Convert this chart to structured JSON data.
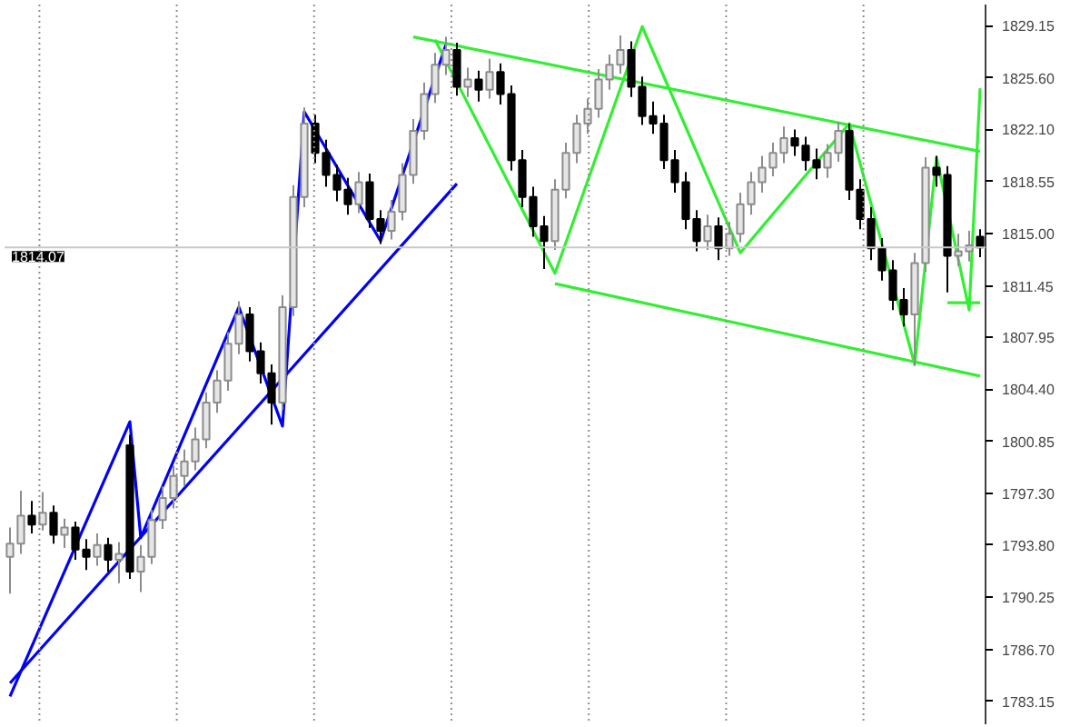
{
  "chart_data": {
    "type": "candlestick",
    "categories": [
      null,
      null,
      null,
      null,
      null,
      null,
      null,
      null,
      null,
      null,
      null,
      null,
      null,
      null,
      null,
      null,
      null,
      null,
      null,
      null,
      null,
      null,
      null,
      null,
      null,
      null,
      null,
      null,
      null,
      null,
      null,
      null,
      null,
      null,
      null,
      null,
      null,
      null,
      null,
      null,
      null,
      null,
      null,
      null,
      null,
      null,
      null,
      null,
      null,
      null,
      null,
      null,
      null,
      null,
      null,
      null,
      null,
      null,
      null,
      null,
      null,
      null,
      null,
      null,
      null,
      null,
      null,
      null,
      null,
      null,
      null,
      null,
      null,
      null,
      null,
      null,
      null,
      null,
      null,
      null,
      null,
      null,
      null,
      null,
      null,
      null,
      null,
      null,
      null,
      null
    ],
    "ohlc": [
      [
        1793.0,
        1795.0,
        1790.5,
        1793.9
      ],
      [
        1793.9,
        1797.5,
        1793.2,
        1795.8
      ],
      [
        1795.8,
        1796.8,
        1794.6,
        1795.2
      ],
      [
        1795.2,
        1797.4,
        1794.8,
        1796.0
      ],
      [
        1796.0,
        1796.5,
        1793.9,
        1794.5
      ],
      [
        1794.5,
        1795.6,
        1793.6,
        1795.0
      ],
      [
        1795.0,
        1795.4,
        1792.8,
        1793.5
      ],
      [
        1793.5,
        1794.2,
        1792.1,
        1793.0
      ],
      [
        1793.0,
        1794.6,
        1792.4,
        1793.8
      ],
      [
        1793.8,
        1794.3,
        1792.0,
        1792.8
      ],
      [
        1792.8,
        1794.0,
        1791.2,
        1793.2
      ],
      [
        1800.6,
        1801.3,
        1791.5,
        1792.0
      ],
      [
        1792.0,
        1793.8,
        1790.6,
        1793.0
      ],
      [
        1793.0,
        1796.2,
        1792.5,
        1795.5
      ],
      [
        1795.5,
        1797.8,
        1794.9,
        1797.0
      ],
      [
        1797.0,
        1799.2,
        1796.3,
        1798.5
      ],
      [
        1798.5,
        1800.3,
        1797.8,
        1799.5
      ],
      [
        1799.5,
        1801.8,
        1798.9,
        1801.0
      ],
      [
        1801.0,
        1804.2,
        1800.4,
        1803.5
      ],
      [
        1803.5,
        1805.7,
        1802.8,
        1805.0
      ],
      [
        1805.0,
        1808.3,
        1804.3,
        1807.5
      ],
      [
        1807.5,
        1810.4,
        1806.8,
        1809.5
      ],
      [
        1809.5,
        1810.0,
        1806.3,
        1807.0
      ],
      [
        1807.0,
        1807.6,
        1804.8,
        1805.5
      ],
      [
        1805.5,
        1806.1,
        1802.0,
        1803.5
      ],
      [
        1803.5,
        1810.8,
        1803.0,
        1810.0
      ],
      [
        1810.0,
        1818.3,
        1809.4,
        1817.5
      ],
      [
        1817.5,
        1823.6,
        1816.8,
        1822.5
      ],
      [
        1822.5,
        1823.1,
        1819.8,
        1820.5
      ],
      [
        1820.5,
        1821.4,
        1818.2,
        1819.0
      ],
      [
        1819.0,
        1819.7,
        1817.2,
        1818.0
      ],
      [
        1818.0,
        1818.8,
        1816.3,
        1817.0
      ],
      [
        1817.0,
        1819.2,
        1816.4,
        1818.5
      ],
      [
        1818.5,
        1819.1,
        1815.4,
        1816.0
      ],
      [
        1816.0,
        1816.6,
        1814.3,
        1815.2
      ],
      [
        1815.2,
        1817.3,
        1814.6,
        1816.5
      ],
      [
        1816.5,
        1819.8,
        1815.9,
        1819.0
      ],
      [
        1819.0,
        1822.8,
        1818.4,
        1822.0
      ],
      [
        1822.0,
        1825.3,
        1821.4,
        1824.5
      ],
      [
        1824.5,
        1827.3,
        1823.9,
        1826.5
      ],
      [
        1826.5,
        1828.4,
        1825.8,
        1827.5
      ],
      [
        1827.5,
        1828.0,
        1824.4,
        1825.0
      ],
      [
        1825.0,
        1826.3,
        1824.3,
        1825.5
      ],
      [
        1825.5,
        1826.1,
        1824.0,
        1824.8
      ],
      [
        1824.8,
        1826.9,
        1824.2,
        1826.0
      ],
      [
        1826.0,
        1826.6,
        1823.8,
        1824.5
      ],
      [
        1824.5,
        1825.1,
        1819.3,
        1820.0
      ],
      [
        1820.0,
        1820.7,
        1816.8,
        1817.5
      ],
      [
        1817.5,
        1818.2,
        1814.8,
        1815.5
      ],
      [
        1815.5,
        1816.2,
        1812.6,
        1814.5
      ],
      [
        1814.5,
        1818.7,
        1813.9,
        1818.0
      ],
      [
        1818.0,
        1821.2,
        1817.4,
        1820.5
      ],
      [
        1820.5,
        1823.1,
        1819.8,
        1822.5
      ],
      [
        1822.5,
        1824.2,
        1821.8,
        1823.5
      ],
      [
        1823.5,
        1826.2,
        1822.9,
        1825.5
      ],
      [
        1825.5,
        1827.2,
        1824.8,
        1826.5
      ],
      [
        1826.5,
        1828.5,
        1825.9,
        1827.5
      ],
      [
        1827.5,
        1828.1,
        1824.3,
        1825.0
      ],
      [
        1825.0,
        1825.7,
        1822.4,
        1823.0
      ],
      [
        1823.0,
        1824.0,
        1821.8,
        1822.5
      ],
      [
        1822.5,
        1823.1,
        1819.4,
        1820.0
      ],
      [
        1820.0,
        1820.7,
        1817.8,
        1818.5
      ],
      [
        1818.5,
        1819.2,
        1815.3,
        1816.0
      ],
      [
        1816.0,
        1816.6,
        1813.8,
        1814.5
      ],
      [
        1814.5,
        1816.3,
        1813.9,
        1815.5
      ],
      [
        1815.5,
        1816.1,
        1813.2,
        1814.0
      ],
      [
        1814.0,
        1815.8,
        1813.5,
        1815.0
      ],
      [
        1815.0,
        1817.8,
        1814.4,
        1817.0
      ],
      [
        1817.0,
        1819.2,
        1816.3,
        1818.5
      ],
      [
        1818.5,
        1820.3,
        1817.8,
        1819.5
      ],
      [
        1819.5,
        1821.2,
        1818.9,
        1820.5
      ],
      [
        1820.5,
        1822.3,
        1819.8,
        1821.5
      ],
      [
        1821.5,
        1822.1,
        1820.3,
        1821.0
      ],
      [
        1821.0,
        1821.6,
        1819.3,
        1820.0
      ],
      [
        1820.0,
        1820.8,
        1818.7,
        1819.5
      ],
      [
        1819.5,
        1821.1,
        1818.8,
        1820.5
      ],
      [
        1820.5,
        1822.6,
        1819.9,
        1822.0
      ],
      [
        1822.0,
        1822.5,
        1817.3,
        1818.0
      ],
      [
        1818.0,
        1818.7,
        1815.3,
        1816.0
      ],
      [
        1816.0,
        1816.8,
        1813.2,
        1814.0
      ],
      [
        1814.0,
        1814.7,
        1811.8,
        1812.5
      ],
      [
        1812.5,
        1813.2,
        1809.8,
        1810.5
      ],
      [
        1810.5,
        1811.3,
        1808.7,
        1809.5
      ],
      [
        1809.5,
        1813.7,
        1806.0,
        1813.0
      ],
      [
        1813.0,
        1820.2,
        1812.4,
        1819.5
      ],
      [
        1819.5,
        1820.3,
        1818.2,
        1819.0
      ],
      [
        1819.0,
        1819.6,
        1811.0,
        1813.5
      ],
      [
        1813.5,
        1815.0,
        1812.8,
        1813.8
      ],
      [
        1813.8,
        1815.2,
        1813.1,
        1814.2
      ],
      [
        1814.8,
        1815.3,
        1813.4,
        1814.07
      ]
    ],
    "series": [
      {
        "type": "line",
        "color": "#0000ff",
        "values": [
          1783.5,
          null,
          null,
          null,
          null,
          null,
          null,
          null,
          null,
          null,
          null,
          1802.2,
          1794.3,
          null,
          null,
          null,
          null,
          null,
          null,
          null,
          null,
          1810.0,
          null,
          null,
          null,
          1801.9,
          null,
          1823.3,
          null,
          null,
          null,
          null,
          null,
          null,
          1814.5,
          null,
          null,
          null,
          null,
          null,
          1827.9,
          null,
          null,
          null,
          null,
          null,
          null,
          null,
          null,
          null,
          null,
          null,
          null,
          null,
          null,
          null,
          null,
          null,
          null,
          null,
          null,
          null,
          null,
          null,
          null,
          null,
          null,
          null,
          null,
          null,
          null,
          null,
          null,
          null,
          null,
          null,
          null,
          null,
          null,
          null,
          null,
          null,
          null,
          null,
          null,
          null,
          null,
          null,
          null,
          null
        ]
      },
      {
        "type": "line",
        "color": "#0000ff",
        "values": [
          1784.4,
          null,
          null,
          null,
          null,
          null,
          null,
          null,
          null,
          null,
          null,
          null,
          null,
          null,
          null,
          null,
          null,
          null,
          null,
          null,
          null,
          null,
          null,
          null,
          null,
          null,
          null,
          null,
          null,
          null,
          null,
          null,
          null,
          null,
          null,
          null,
          null,
          null,
          null,
          null,
          null,
          1818.4,
          null,
          null,
          null,
          null,
          null,
          null,
          null,
          null,
          null,
          null,
          null,
          null,
          null,
          null,
          null,
          null,
          null,
          null,
          null,
          null,
          null,
          null,
          null,
          null,
          null,
          null,
          null,
          null,
          null,
          null,
          null,
          null,
          null,
          null,
          null,
          null,
          null,
          null,
          null,
          null,
          null,
          null,
          null,
          null,
          null,
          null,
          null,
          null
        ]
      },
      {
        "type": "line",
        "color": "#33ee33",
        "values": [
          null,
          null,
          null,
          null,
          null,
          null,
          null,
          null,
          null,
          null,
          null,
          null,
          null,
          null,
          null,
          null,
          null,
          null,
          null,
          null,
          null,
          null,
          null,
          null,
          null,
          null,
          null,
          null,
          null,
          null,
          null,
          null,
          null,
          null,
          null,
          null,
          null,
          null,
          null,
          1828.2,
          null,
          null,
          null,
          null,
          null,
          null,
          null,
          null,
          null,
          null,
          1812.3,
          null,
          null,
          null,
          null,
          null,
          null,
          null,
          1829.1,
          null,
          null,
          null,
          null,
          null,
          null,
          null,
          null,
          1813.7,
          null,
          null,
          null,
          null,
          null,
          null,
          null,
          null,
          null,
          1822.5,
          null,
          null,
          null,
          null,
          null,
          1806.1,
          null,
          1820.2,
          null,
          null,
          1809.8,
          1824.9
        ]
      },
      {
        "type": "line",
        "color": "#33ee33",
        "values": [
          null,
          null,
          null,
          null,
          null,
          null,
          null,
          null,
          null,
          null,
          null,
          null,
          null,
          null,
          null,
          null,
          null,
          null,
          null,
          null,
          null,
          null,
          null,
          null,
          null,
          null,
          null,
          null,
          null,
          null,
          null,
          null,
          null,
          null,
          null,
          null,
          null,
          1828.4,
          null,
          null,
          null,
          null,
          null,
          null,
          null,
          null,
          null,
          null,
          null,
          null,
          null,
          null,
          null,
          null,
          null,
          null,
          null,
          null,
          null,
          null,
          null,
          null,
          null,
          null,
          null,
          null,
          null,
          null,
          null,
          null,
          null,
          null,
          null,
          null,
          null,
          null,
          null,
          null,
          null,
          null,
          null,
          null,
          null,
          null,
          null,
          null,
          null,
          null,
          null,
          1820.6
        ]
      },
      {
        "type": "line",
        "color": "#33ee33",
        "values": [
          null,
          null,
          null,
          null,
          null,
          null,
          null,
          null,
          null,
          null,
          null,
          null,
          null,
          null,
          null,
          null,
          null,
          null,
          null,
          null,
          null,
          null,
          null,
          null,
          null,
          null,
          null,
          null,
          null,
          null,
          null,
          null,
          null,
          null,
          null,
          null,
          null,
          null,
          null,
          null,
          null,
          null,
          null,
          null,
          null,
          null,
          null,
          null,
          null,
          null,
          1811.6,
          null,
          null,
          null,
          null,
          null,
          null,
          null,
          null,
          null,
          null,
          null,
          null,
          null,
          null,
          null,
          null,
          null,
          null,
          null,
          null,
          null,
          null,
          null,
          null,
          null,
          null,
          null,
          null,
          null,
          null,
          null,
          null,
          null,
          null,
          null,
          null,
          null,
          null,
          1805.3
        ]
      },
      {
        "type": "line",
        "color": "#33ee33",
        "values": [
          null,
          null,
          null,
          null,
          null,
          null,
          null,
          null,
          null,
          null,
          null,
          null,
          null,
          null,
          null,
          null,
          null,
          null,
          null,
          null,
          null,
          null,
          null,
          null,
          null,
          null,
          null,
          null,
          null,
          null,
          null,
          null,
          null,
          null,
          null,
          null,
          null,
          null,
          null,
          null,
          null,
          null,
          null,
          null,
          null,
          null,
          null,
          null,
          null,
          null,
          null,
          null,
          null,
          null,
          null,
          null,
          null,
          null,
          null,
          null,
          null,
          null,
          null,
          null,
          null,
          null,
          null,
          null,
          null,
          null,
          null,
          null,
          null,
          null,
          null,
          null,
          null,
          null,
          null,
          null,
          null,
          null,
          null,
          null,
          null,
          null,
          1810.3,
          null,
          null,
          1810.3
        ]
      }
    ],
    "ref_lines": [
      {
        "axis": "y",
        "value": 1814.07,
        "label": "1814.07",
        "color": "#c8c8c8"
      }
    ],
    "ylim": [
      1781.6,
      1830.6
    ],
    "yticks": [
      {
        "value": 1783.15,
        "label": "1783.15"
      },
      {
        "value": 1786.7,
        "label": "1786.70"
      },
      {
        "value": 1790.25,
        "label": "1790.25"
      },
      {
        "value": 1793.8,
        "label": "1793.80"
      },
      {
        "value": 1797.3,
        "label": "1797.30"
      },
      {
        "value": 1800.85,
        "label": "1800.85"
      },
      {
        "value": 1804.4,
        "label": "1804.40"
      },
      {
        "value": 1807.95,
        "label": "1807.95"
      },
      {
        "value": 1811.45,
        "label": "1811.45"
      },
      {
        "value": 1815.0,
        "label": "1815.00"
      },
      {
        "value": 1818.55,
        "label": "1818.55"
      },
      {
        "value": 1822.1,
        "label": "1822.10"
      },
      {
        "value": 1825.6,
        "label": "1825.60"
      },
      {
        "value": 1829.15,
        "label": "1829.15"
      }
    ],
    "tick_labels": "y"
  }
}
